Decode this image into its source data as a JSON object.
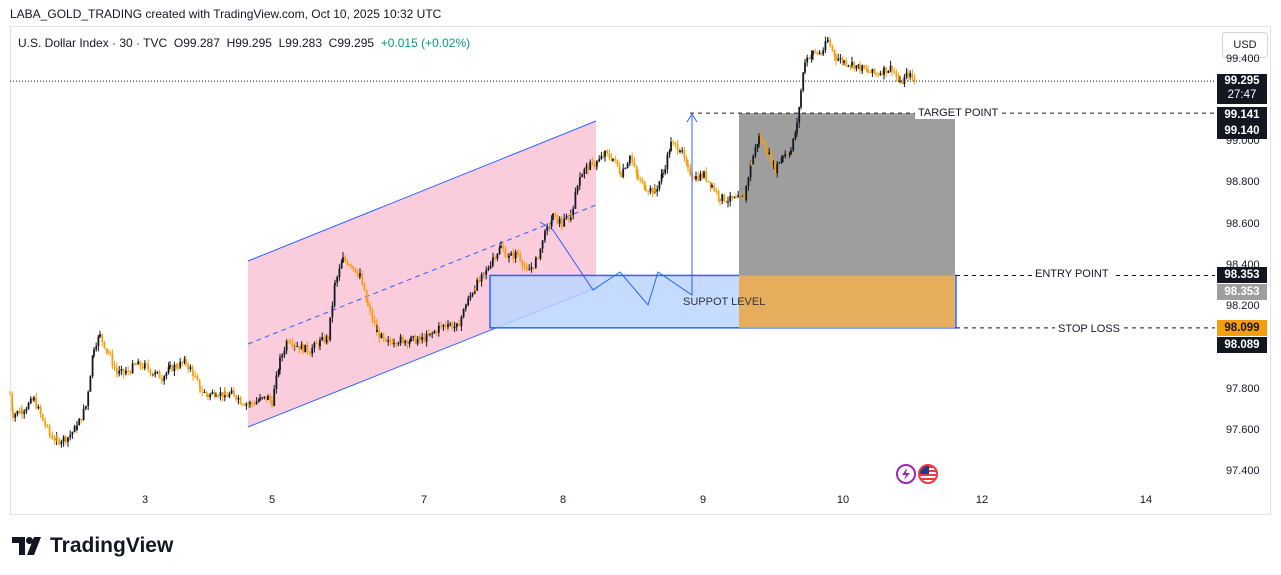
{
  "header": {
    "text": "LABA_GOLD_TRADING created with TradingView.com, Oct 10, 2025 10:32 UTC"
  },
  "legend": {
    "symbol": "U.S. Dollar Index · 30 · TVC",
    "o_label": "O",
    "o": "99.287",
    "h_label": "H",
    "h": "99.295",
    "l_label": "L",
    "l": "99.283",
    "c_label": "C",
    "c": "99.295",
    "change": "+0.015 (+0.02%)"
  },
  "currency_button": "USD",
  "brand": "TradingView",
  "price_tags": {
    "last": "99.295",
    "countdown": "27:47",
    "target_a": "99.141",
    "target_b": "99.140",
    "entry_a": "98.353",
    "entry_b": "98.353",
    "stop_a": "98.099",
    "stop_b": "98.089"
  },
  "levels": {
    "target": "TARGET POINT",
    "entry": "ENTRY POINT",
    "stop": "STOP LOSS",
    "support": "SUPPOT LEVEL"
  },
  "colors": {
    "up": "#131722",
    "down": "#f59e0b",
    "channel_fill": "#f8bbd0",
    "channel_line": "#2962ff",
    "support_fill": "#bbd5ff",
    "support_line": "#2962ff",
    "target_fill": "#9e9e9e",
    "stop_fill": "#e6ae5c",
    "tag_dark": "#131722",
    "tag_orange": "#f59e0b",
    "tag_gray": "#9e9e9e"
  },
  "chart_data": {
    "type": "candlestick",
    "ylim": [
      97.3,
      99.6
    ],
    "y_ticks": [
      "97.400",
      "97.600",
      "97.800",
      "98.000",
      "98.200",
      "98.400",
      "98.600",
      "98.800",
      "99.000",
      "99.200",
      "99.400"
    ],
    "x_ticks": [
      "3",
      "5",
      "7",
      "8",
      "9",
      "10",
      "12",
      "14"
    ],
    "close_path": [
      [
        0,
        97.78
      ],
      [
        3,
        97.68
      ],
      [
        12,
        97.7
      ],
      [
        24,
        97.75
      ],
      [
        33,
        97.65
      ],
      [
        40,
        97.58
      ],
      [
        47,
        97.55
      ],
      [
        58,
        97.57
      ],
      [
        67,
        97.62
      ],
      [
        76,
        97.72
      ],
      [
        84,
        98.01
      ],
      [
        90,
        98.06
      ],
      [
        98,
        97.98
      ],
      [
        107,
        97.88
      ],
      [
        116,
        97.88
      ],
      [
        126,
        97.92
      ],
      [
        136,
        97.91
      ],
      [
        143,
        97.88
      ],
      [
        152,
        97.86
      ],
      [
        160,
        97.9
      ],
      [
        168,
        97.92
      ],
      [
        176,
        97.93
      ],
      [
        183,
        97.88
      ],
      [
        190,
        97.8
      ],
      [
        198,
        97.77
      ],
      [
        206,
        97.79
      ],
      [
        215,
        97.77
      ],
      [
        224,
        97.78
      ],
      [
        232,
        97.74
      ],
      [
        240,
        97.73
      ],
      [
        250,
        97.75
      ],
      [
        258,
        97.76
      ],
      [
        262,
        97.74
      ],
      [
        270,
        97.94
      ],
      [
        278,
        98.05
      ],
      [
        285,
        98.02
      ],
      [
        293,
        98.0
      ],
      [
        300,
        97.99
      ],
      [
        310,
        98.03
      ],
      [
        318,
        98.05
      ],
      [
        325,
        98.31
      ],
      [
        333,
        98.43
      ],
      [
        341,
        98.41
      ],
      [
        350,
        98.35
      ],
      [
        358,
        98.2
      ],
      [
        367,
        98.08
      ],
      [
        376,
        98.02
      ],
      [
        384,
        98.04
      ],
      [
        393,
        98.04
      ],
      [
        401,
        98.04
      ],
      [
        410,
        98.04
      ],
      [
        420,
        98.06
      ],
      [
        429,
        98.1
      ],
      [
        438,
        98.12
      ],
      [
        447,
        98.1
      ],
      [
        456,
        98.21
      ],
      [
        465,
        98.3
      ],
      [
        474,
        98.35
      ],
      [
        483,
        98.44
      ],
      [
        491,
        98.49
      ],
      [
        499,
        98.44
      ],
      [
        508,
        98.46
      ],
      [
        517,
        98.37
      ],
      [
        526,
        98.42
      ],
      [
        535,
        98.55
      ],
      [
        543,
        98.64
      ],
      [
        552,
        98.6
      ],
      [
        561,
        98.65
      ],
      [
        570,
        98.84
      ],
      [
        578,
        98.88
      ],
      [
        587,
        98.9
      ],
      [
        595,
        98.94
      ],
      [
        603,
        98.92
      ],
      [
        611,
        98.85
      ],
      [
        620,
        98.93
      ],
      [
        628,
        98.82
      ],
      [
        636,
        98.78
      ],
      [
        645,
        98.76
      ],
      [
        653,
        98.85
      ],
      [
        661,
        98.99
      ],
      [
        670,
        98.97
      ],
      [
        678,
        98.86
      ],
      [
        686,
        98.83
      ],
      [
        694,
        98.84
      ],
      [
        702,
        98.79
      ],
      [
        710,
        98.73
      ],
      [
        718,
        98.72
      ],
      [
        726,
        98.72
      ],
      [
        734,
        98.73
      ],
      [
        741,
        98.9
      ],
      [
        749,
        99.02
      ],
      [
        757,
        98.96
      ],
      [
        765,
        98.87
      ],
      [
        773,
        98.94
      ],
      [
        781,
        98.96
      ],
      [
        787,
        99.08
      ],
      [
        791,
        99.25
      ],
      [
        795,
        99.4
      ],
      [
        803,
        99.43
      ],
      [
        811,
        99.43
      ],
      [
        818,
        99.49
      ],
      [
        826,
        99.41
      ],
      [
        834,
        99.39
      ],
      [
        842,
        99.38
      ],
      [
        850,
        99.36
      ],
      [
        858,
        99.34
      ],
      [
        866,
        99.33
      ],
      [
        874,
        99.35
      ],
      [
        882,
        99.36
      ],
      [
        890,
        99.28
      ],
      [
        898,
        99.33
      ],
      [
        905,
        99.295
      ]
    ],
    "overlays": {
      "target_point": 99.14,
      "entry_point": 98.353,
      "stop_loss": 98.099,
      "last_price": 99.295
    }
  }
}
